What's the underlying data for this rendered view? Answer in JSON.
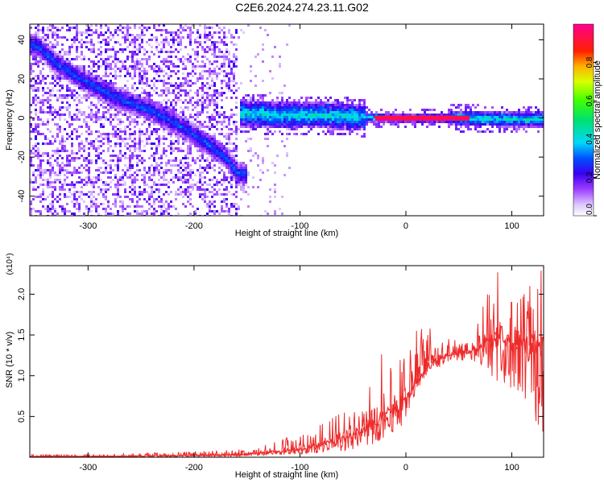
{
  "title": "C2E6.2024.274.23.11.G02",
  "chart_data": [
    {
      "type": "heatmap",
      "xlabel": "Height of straight line (km)",
      "ylabel": "Frequency (Hz)",
      "xlim": [
        -355,
        130
      ],
      "ylim": [
        -50,
        48
      ],
      "xticks": [
        -300,
        -200,
        -100,
        0,
        100
      ],
      "yticks": [
        -40,
        -20,
        0,
        20,
        40
      ],
      "colorbar": {
        "label": "Normalized spectral amplitude",
        "range": [
          0,
          1
        ],
        "ticks": [
          0.0,
          0.2,
          0.4,
          0.6,
          0.8
        ],
        "colormap": "white-purple-blue-cyan-green-yellow-red-magenta"
      },
      "grid": false,
      "features": [
        {
          "description": "descending Doppler track",
          "x": [
            -350,
            -330,
            -300,
            -270,
            -240,
            -210,
            -190,
            -170,
            -160
          ],
          "y": [
            38,
            28,
            18,
            10,
            4,
            -5,
            -12,
            -20,
            -28
          ]
        },
        {
          "description": "carrier band near 0 Hz",
          "x": [
            -155,
            -120,
            -80,
            -40,
            -20,
            0,
            50,
            100,
            130
          ],
          "y": [
            3,
            2,
            2,
            1,
            0.5,
            0.5,
            0.5,
            0,
            0
          ]
        }
      ]
    },
    {
      "type": "line",
      "xlabel": "Height of straight line (km)",
      "ylabel": "SNR (10 * v/v)",
      "multiplier": "(x10⁴)",
      "xlim": [
        -355,
        130
      ],
      "ylim": [
        0,
        2.35
      ],
      "xticks": [
        -300,
        -200,
        -100,
        0,
        100
      ],
      "yticks": [
        0.5,
        1.0,
        1.5,
        2.0
      ],
      "series_color": "#ee2a2a",
      "grid": false,
      "x": [
        -355,
        -300,
        -250,
        -200,
        -160,
        -140,
        -120,
        -100,
        -80,
        -60,
        -40,
        -20,
        -10,
        0,
        10,
        20,
        40,
        60,
        70,
        80,
        90,
        100,
        110,
        120,
        130
      ],
      "y_mid": [
        0.01,
        0.01,
        0.015,
        0.02,
        0.03,
        0.05,
        0.07,
        0.1,
        0.15,
        0.22,
        0.35,
        0.5,
        0.6,
        0.7,
        0.95,
        1.1,
        1.25,
        1.3,
        1.35,
        1.45,
        1.45,
        1.4,
        1.35,
        1.4,
        1.45
      ],
      "y_low": [
        0.0,
        0.0,
        0.0,
        0.005,
        0.01,
        0.02,
        0.03,
        0.04,
        0.05,
        0.08,
        0.1,
        0.2,
        0.3,
        0.45,
        0.8,
        1.0,
        1.15,
        1.2,
        1.15,
        1.0,
        0.9,
        0.85,
        0.8,
        0.5,
        0.3
      ],
      "y_high": [
        0.03,
        0.03,
        0.05,
        0.07,
        0.09,
        0.12,
        0.2,
        0.3,
        0.4,
        0.55,
        0.75,
        1.35,
        1.5,
        1.15,
        1.55,
        1.6,
        1.45,
        1.5,
        1.75,
        2.1,
        2.35,
        1.9,
        1.95,
        2.25,
        2.3
      ]
    }
  ]
}
